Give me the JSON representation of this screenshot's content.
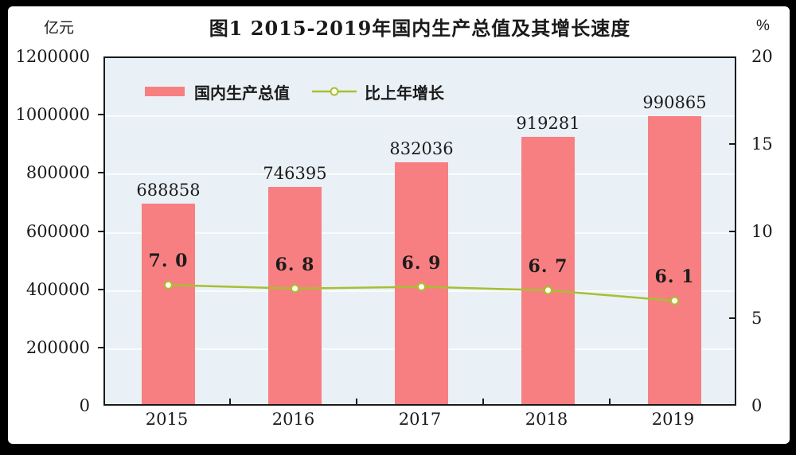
{
  "header": {
    "title": "图1  2015-2019年国内生产总值及其增长速度",
    "left_unit": "亿元",
    "right_unit": "%"
  },
  "legend": {
    "items": [
      {
        "label": "国内生产总值",
        "type": "bar"
      },
      {
        "label": "比上年增长",
        "type": "line"
      }
    ]
  },
  "colors": {
    "bar": "#f87f81",
    "line": "#a7bf32",
    "marker_fill": "#fffdea",
    "plot_background": "#e9f1f6",
    "gridline": "#f8fcfe",
    "text": "#1a1a1a"
  },
  "chart_data": {
    "type": "bar",
    "title": "图1  2015-2019年国内生产总值及其增长速度",
    "categories": [
      "2015",
      "2016",
      "2017",
      "2018",
      "2019"
    ],
    "series": [
      {
        "name": "国内生产总值",
        "type": "bar",
        "axis": "left",
        "unit": "亿元",
        "values": [
          688858,
          746395,
          832036,
          919281,
          990865
        ],
        "labels": [
          "688858",
          "746395",
          "832036",
          "919281",
          "990865"
        ],
        "color": "#f87f81"
      },
      {
        "name": "比上年增长",
        "type": "line",
        "axis": "right",
        "unit": "%",
        "values": [
          7.0,
          6.8,
          6.9,
          6.7,
          6.1
        ],
        "labels": [
          "7. 0",
          "6. 8",
          "6. 9",
          "6. 7",
          "6. 1"
        ],
        "color": "#a7bf32"
      }
    ],
    "left_axis": {
      "label": "亿元",
      "min": 0,
      "max": 1200000,
      "step": 200000,
      "ticks": [
        "1200000",
        "1000000",
        "800000",
        "600000",
        "400000",
        "200000",
        "0"
      ]
    },
    "right_axis": {
      "label": "%",
      "min": 0,
      "max": 20,
      "step": 5,
      "ticks": [
        "20",
        "15",
        "10",
        "5",
        "0"
      ]
    },
    "grid": true,
    "legend_position": "top-left-inside"
  }
}
